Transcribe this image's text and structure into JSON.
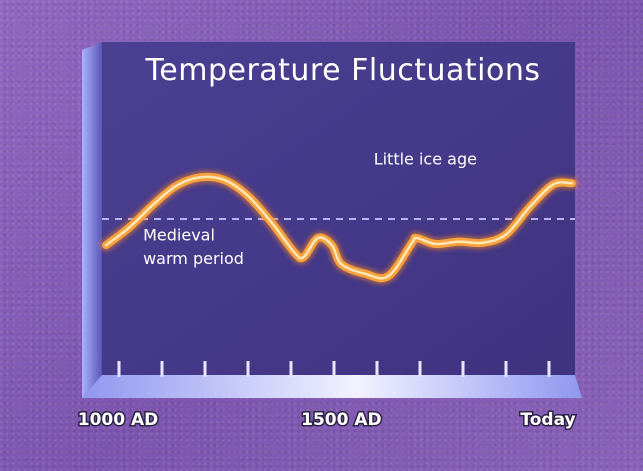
{
  "chart_data": {
    "type": "line",
    "title": "Temperature Fluctuations",
    "x_tick_labels": [
      "1000 AD",
      "1500 AD",
      "Today"
    ],
    "x_tick_values": [
      1000,
      1500,
      1990
    ],
    "xlim": [
      1000,
      1990
    ],
    "ylim": [
      -1,
      1
    ],
    "reference_line": {
      "y": 0,
      "style": "dashed"
    },
    "annotations": [
      {
        "text": "Medieval",
        "x": 1100,
        "y": -0.18
      },
      {
        "text": "warm period",
        "x": 1100,
        "y": -0.38
      },
      {
        "text": "Little ice age",
        "x": 1590,
        "y": 0.46
      }
    ],
    "x": [
      1000,
      1050,
      1100,
      1150,
      1200,
      1250,
      1300,
      1350,
      1400,
      1420,
      1450,
      1480,
      1500,
      1550,
      1600,
      1650,
      1660,
      1700,
      1750,
      1800,
      1850,
      1900,
      1950,
      1990
    ],
    "y": [
      -0.22,
      -0.07,
      0.12,
      0.28,
      0.35,
      0.33,
      0.2,
      -0.02,
      -0.28,
      -0.32,
      -0.16,
      -0.22,
      -0.38,
      -0.46,
      -0.48,
      -0.2,
      -0.16,
      -0.21,
      -0.19,
      -0.2,
      -0.13,
      0.1,
      0.29,
      0.3
    ],
    "grid": false,
    "colors": {
      "line": "#f7a23c",
      "line_highlight": "#ffe7b8",
      "plot_area": "#4a3c8d",
      "panel_edge": "#7f87e8",
      "reference_line": "#b7b6f2"
    }
  }
}
